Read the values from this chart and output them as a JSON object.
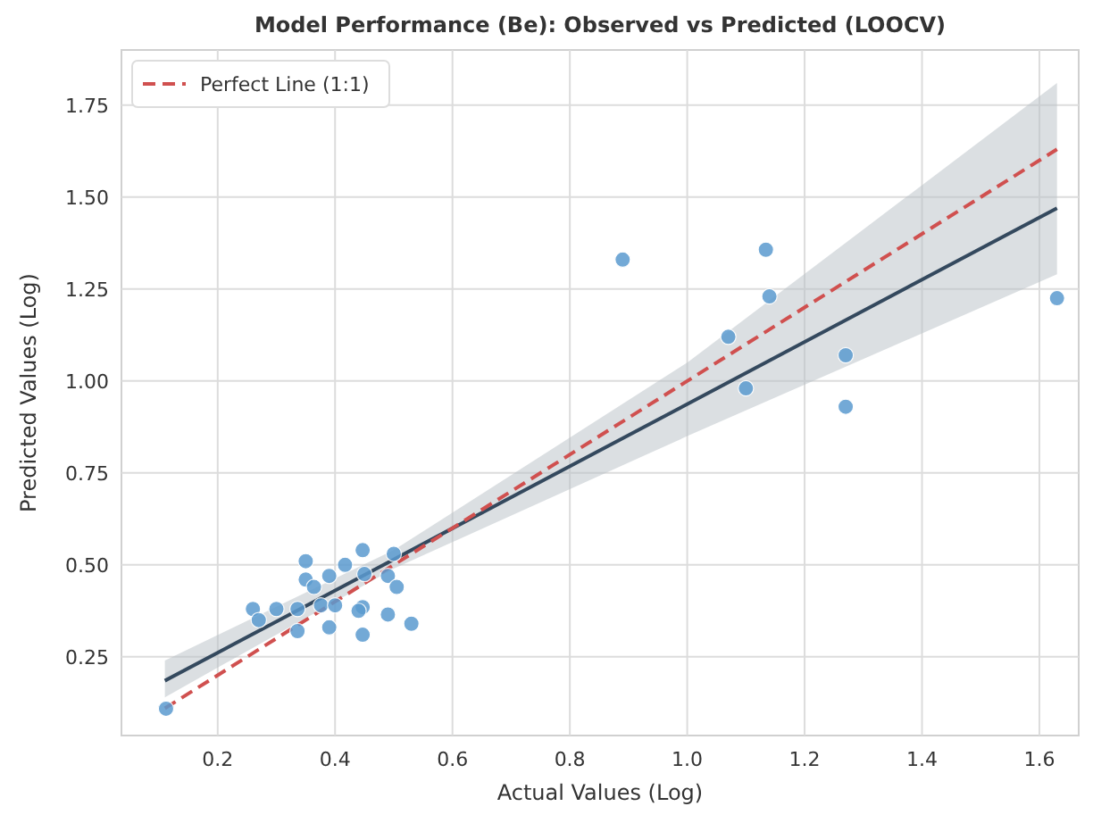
{
  "chart_data": {
    "type": "scatter",
    "title": "Model Performance (Be): Observed vs Predicted (LOOCV)",
    "xlabel": "Actual Values (Log)",
    "ylabel": "Predicted Values (Log)",
    "xlim": [
      0.036,
      1.667
    ],
    "ylim": [
      0.036,
      1.9
    ],
    "xticks": [
      0.2,
      0.4,
      0.6,
      0.8,
      {
        "value": 1,
        "label": "1.0"
      },
      1.2,
      1.4,
      1.6
    ],
    "yticks": [
      0.25,
      {
        "value": 0.5,
        "label": "0.50"
      },
      0.75,
      {
        "value": 1,
        "label": "1.00"
      },
      1.25,
      {
        "value": 1.5,
        "label": "1.50"
      },
      1.75
    ],
    "grid": true,
    "legend": "top left",
    "series": [
      {
        "type": "line",
        "color": "#34495e",
        "x": [
          0.11,
          0.5,
          1.0,
          1.63
        ],
        "values": [
          0.185,
          0.515,
          0.937,
          1.47
        ],
        "lower": [
          0.14,
          0.49,
          0.85,
          1.29
        ],
        "upper": [
          0.24,
          0.54,
          1.05,
          1.81
        ],
        "line_style": "solid"
      },
      {
        "type": "line",
        "name": "Perfect Line (1:1)",
        "color": "#d0504f",
        "x": [
          0.11,
          1.63
        ],
        "values": [
          0.11,
          1.63
        ],
        "line_style": "dashed"
      },
      {
        "color": "#5b9bd0",
        "marker": "circle",
        "x": [
          0.112,
          0.26,
          0.27,
          0.3,
          0.336,
          0.336,
          0.35,
          0.35,
          0.364,
          0.376,
          0.39,
          0.39,
          0.4,
          0.417,
          0.447,
          0.45,
          0.447,
          0.44,
          0.447,
          0.49,
          0.49,
          0.5,
          0.505,
          0.53,
          0.89,
          1.07,
          1.1,
          1.134,
          1.14,
          1.27,
          1.27,
          1.63
        ],
        "values": [
          0.109,
          0.38,
          0.35,
          0.38,
          0.38,
          0.32,
          0.51,
          0.46,
          0.44,
          0.39,
          0.47,
          0.33,
          0.39,
          0.5,
          0.54,
          0.475,
          0.385,
          0.375,
          0.31,
          0.365,
          0.47,
          0.53,
          0.44,
          0.34,
          1.33,
          1.12,
          0.98,
          1.357,
          1.23,
          1.07,
          0.93,
          1.225
        ]
      }
    ]
  }
}
